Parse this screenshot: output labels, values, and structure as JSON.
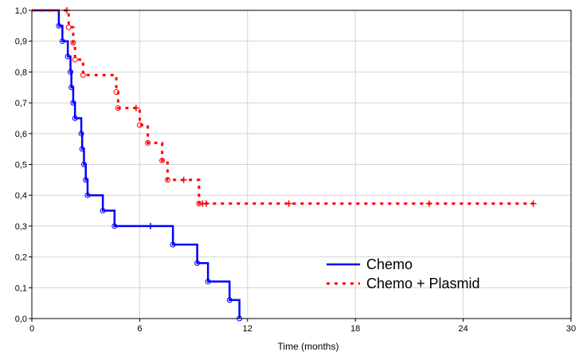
{
  "chart_data": {
    "type": "line",
    "step": true,
    "xlabel": "Time (months)",
    "ylabel": "",
    "xlim": [
      0,
      30
    ],
    "ylim": [
      0,
      1
    ],
    "xticks": [
      0,
      6,
      12,
      18,
      24,
      30
    ],
    "xtick_labels": [
      "0",
      "6",
      "12",
      "18",
      "24",
      "30"
    ],
    "yticks": [
      0,
      0.1,
      0.2,
      0.3,
      0.4,
      0.5,
      0.6,
      0.7,
      0.8,
      0.9,
      1.0
    ],
    "ytick_labels": [
      "0,0",
      "0,1",
      "0,2",
      "0,3",
      "0,4",
      "0,5",
      "0,6",
      "0,7",
      "0,8",
      "0,9",
      "1,0"
    ],
    "grid": true,
    "legend_position": "bottom-right",
    "series": [
      {
        "name": "Chemo",
        "color": "#0000ff",
        "line_style": "solid",
        "points": [
          [
            0,
            1.0
          ],
          [
            1.5,
            0.95
          ],
          [
            1.7,
            0.9
          ],
          [
            2.0,
            0.85
          ],
          [
            2.15,
            0.8
          ],
          [
            2.2,
            0.75
          ],
          [
            2.3,
            0.7
          ],
          [
            2.4,
            0.65
          ],
          [
            2.75,
            0.6
          ],
          [
            2.8,
            0.55
          ],
          [
            2.9,
            0.5
          ],
          [
            3.0,
            0.45
          ],
          [
            3.1,
            0.4
          ],
          [
            3.95,
            0.35
          ],
          [
            4.6,
            0.3
          ],
          [
            7.85,
            0.24
          ],
          [
            9.2,
            0.18
          ],
          [
            9.8,
            0.12
          ],
          [
            11.0,
            0.06
          ],
          [
            11.55,
            0.0
          ]
        ],
        "end_time": 11.55,
        "events": [
          [
            1.5,
            0.95
          ],
          [
            1.7,
            0.9
          ],
          [
            2.0,
            0.85
          ],
          [
            2.15,
            0.8
          ],
          [
            2.2,
            0.75
          ],
          [
            2.3,
            0.7
          ],
          [
            2.4,
            0.65
          ],
          [
            2.75,
            0.6
          ],
          [
            2.8,
            0.55
          ],
          [
            2.9,
            0.5
          ],
          [
            3.0,
            0.45
          ],
          [
            3.1,
            0.4
          ],
          [
            3.95,
            0.35
          ],
          [
            4.6,
            0.3
          ],
          [
            7.85,
            0.24
          ],
          [
            9.2,
            0.18
          ],
          [
            9.8,
            0.12
          ],
          [
            11.0,
            0.06
          ],
          [
            11.55,
            0.0
          ]
        ],
        "censored": [
          [
            6.6,
            0.3
          ]
        ]
      },
      {
        "name": "Chemo + Plasmid",
        "color": "#ff0000",
        "line_style": "dotted",
        "points": [
          [
            0,
            1.0
          ],
          [
            2.05,
            0.945
          ],
          [
            2.3,
            0.895
          ],
          [
            2.4,
            0.84
          ],
          [
            2.85,
            0.79
          ],
          [
            4.7,
            0.735
          ],
          [
            4.8,
            0.683
          ],
          [
            6.0,
            0.628
          ],
          [
            6.45,
            0.57
          ],
          [
            7.25,
            0.513
          ],
          [
            7.55,
            0.45
          ],
          [
            9.3,
            0.373
          ]
        ],
        "end_time": 27.9,
        "events": [
          [
            2.05,
            0.945
          ],
          [
            2.3,
            0.895
          ],
          [
            2.4,
            0.84
          ],
          [
            2.85,
            0.79
          ],
          [
            4.7,
            0.735
          ],
          [
            4.8,
            0.683
          ],
          [
            6.0,
            0.628
          ],
          [
            6.45,
            0.57
          ],
          [
            7.25,
            0.513
          ],
          [
            7.55,
            0.45
          ],
          [
            9.3,
            0.373
          ]
        ],
        "censored": [
          [
            1.95,
            1.0
          ],
          [
            5.8,
            0.683
          ],
          [
            8.45,
            0.45
          ],
          [
            9.5,
            0.373
          ],
          [
            9.7,
            0.373
          ],
          [
            14.3,
            0.373
          ],
          [
            22.1,
            0.373
          ],
          [
            27.9,
            0.373
          ]
        ]
      }
    ]
  }
}
